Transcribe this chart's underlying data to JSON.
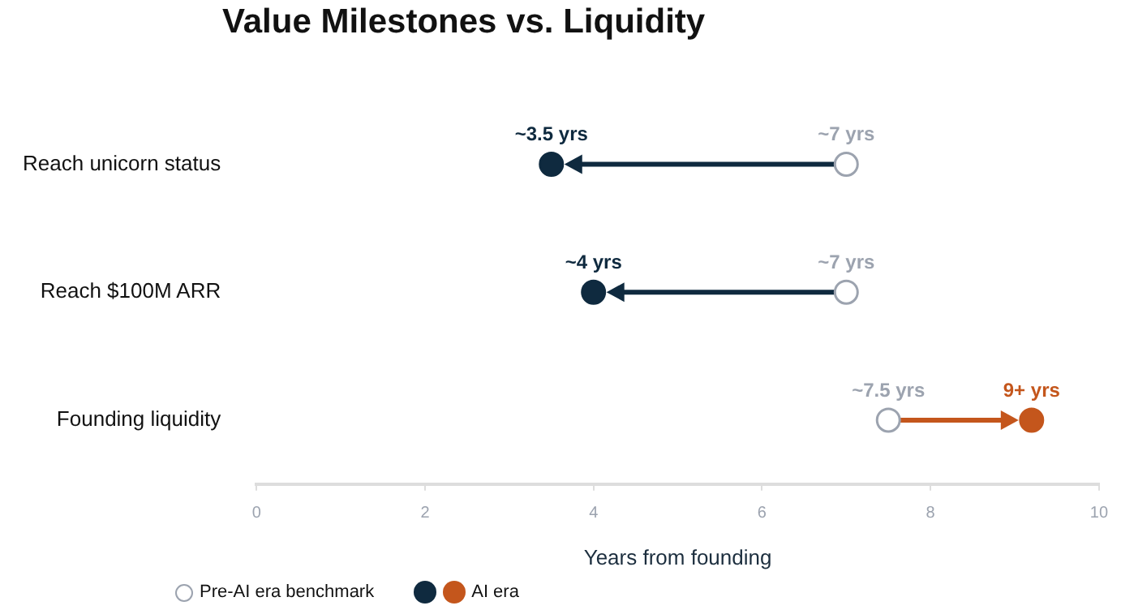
{
  "chart_data": {
    "type": "scatter",
    "title": "Value Milestones vs. Liquidity",
    "xlabel": "Years from founding",
    "orientation": "horizontal",
    "marker": "circle",
    "legend": "bottom left",
    "categories": [
      "Reach unicorn status",
      "Reach $100M ARR",
      "Founding liquidity"
    ],
    "xlim": [
      0,
      10
    ],
    "xticks": [
      0,
      2,
      4,
      6,
      8,
      10
    ],
    "series": [
      {
        "name": "Pre-AI era benchmark",
        "color": "#9ca3af",
        "values": [
          7,
          7,
          7.5
        ],
        "value_labels": [
          "~7 yrs",
          "~7 yrs",
          "~7.5 yrs"
        ]
      },
      {
        "name": "AI era",
        "colors": [
          "#0f2a3f",
          "#0f2a3f",
          "#c4561c"
        ],
        "values": [
          3.5,
          4,
          9.2
        ],
        "value_labels": [
          "~3.5 yrs",
          "~4 yrs",
          "9+ yrs"
        ]
      }
    ]
  }
}
